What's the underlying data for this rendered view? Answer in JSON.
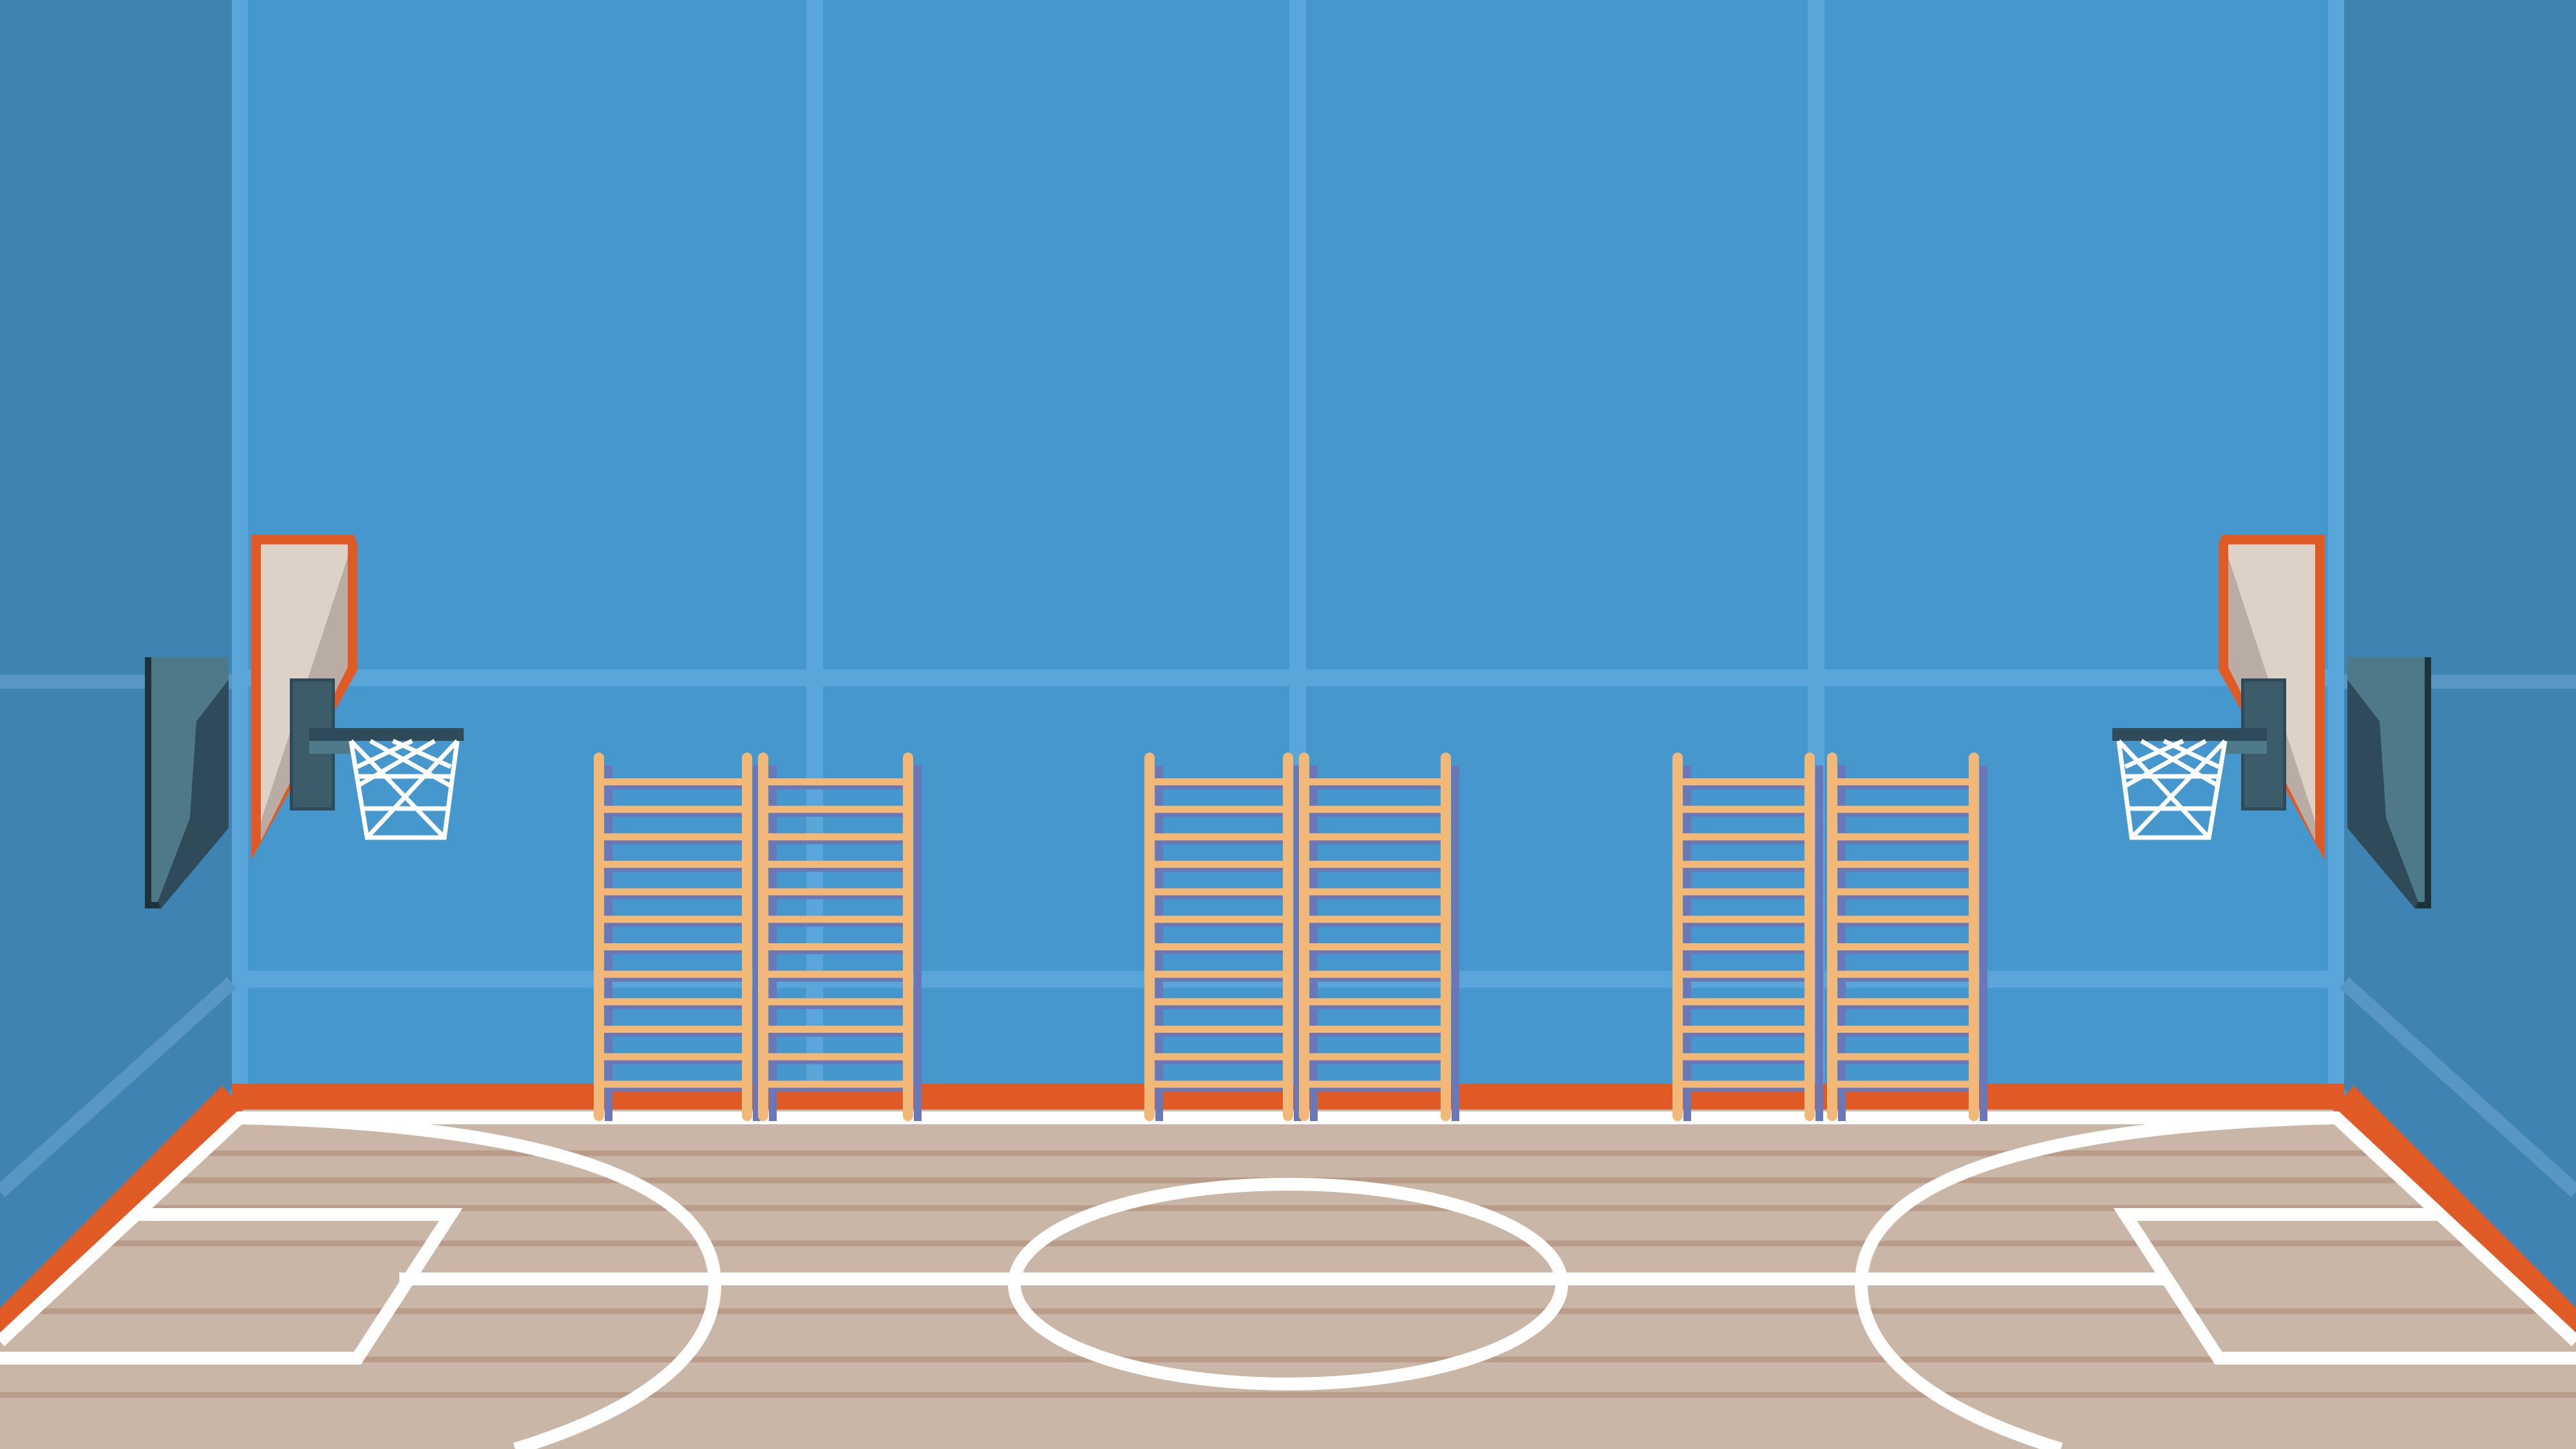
{
  "scene": {
    "type": "gymnasium-basketball-court",
    "view": "side-on",
    "colors": {
      "back_wall": "#4597cd",
      "side_wall": "#3f83b3",
      "wall_panel_line": "#5aa6db",
      "side_panel_line": "#5896c3",
      "baseboard": "#e05a26",
      "floor": "#cab6a6",
      "floor_plank": "#b99b87",
      "court_line": "#ffffff",
      "ladder_wood": "#f2b878",
      "ladder_shadow": "#6b78b8",
      "backboard_frame": "#e05a26",
      "backboard_face": "#dcd2c8",
      "backboard_shade": "#b8aca4",
      "bracket_dark": "#2f4a58",
      "bracket_light": "#4e7989",
      "net": "#ffffff"
    },
    "hoops": [
      {
        "side": "left",
        "icon": "basketball-hoop-icon"
      },
      {
        "side": "right",
        "icon": "basketball-hoop-icon"
      }
    ],
    "wall_bar_groups": [
      {
        "position": "left",
        "ladders": 2,
        "rungs": 12
      },
      {
        "position": "center",
        "ladders": 2,
        "rungs": 12
      },
      {
        "position": "right",
        "ladders": 2,
        "rungs": 12
      }
    ],
    "court_markings": [
      "center-circle",
      "center-line",
      "left-key",
      "right-key",
      "left-three-point-arc",
      "right-three-point-arc"
    ]
  }
}
